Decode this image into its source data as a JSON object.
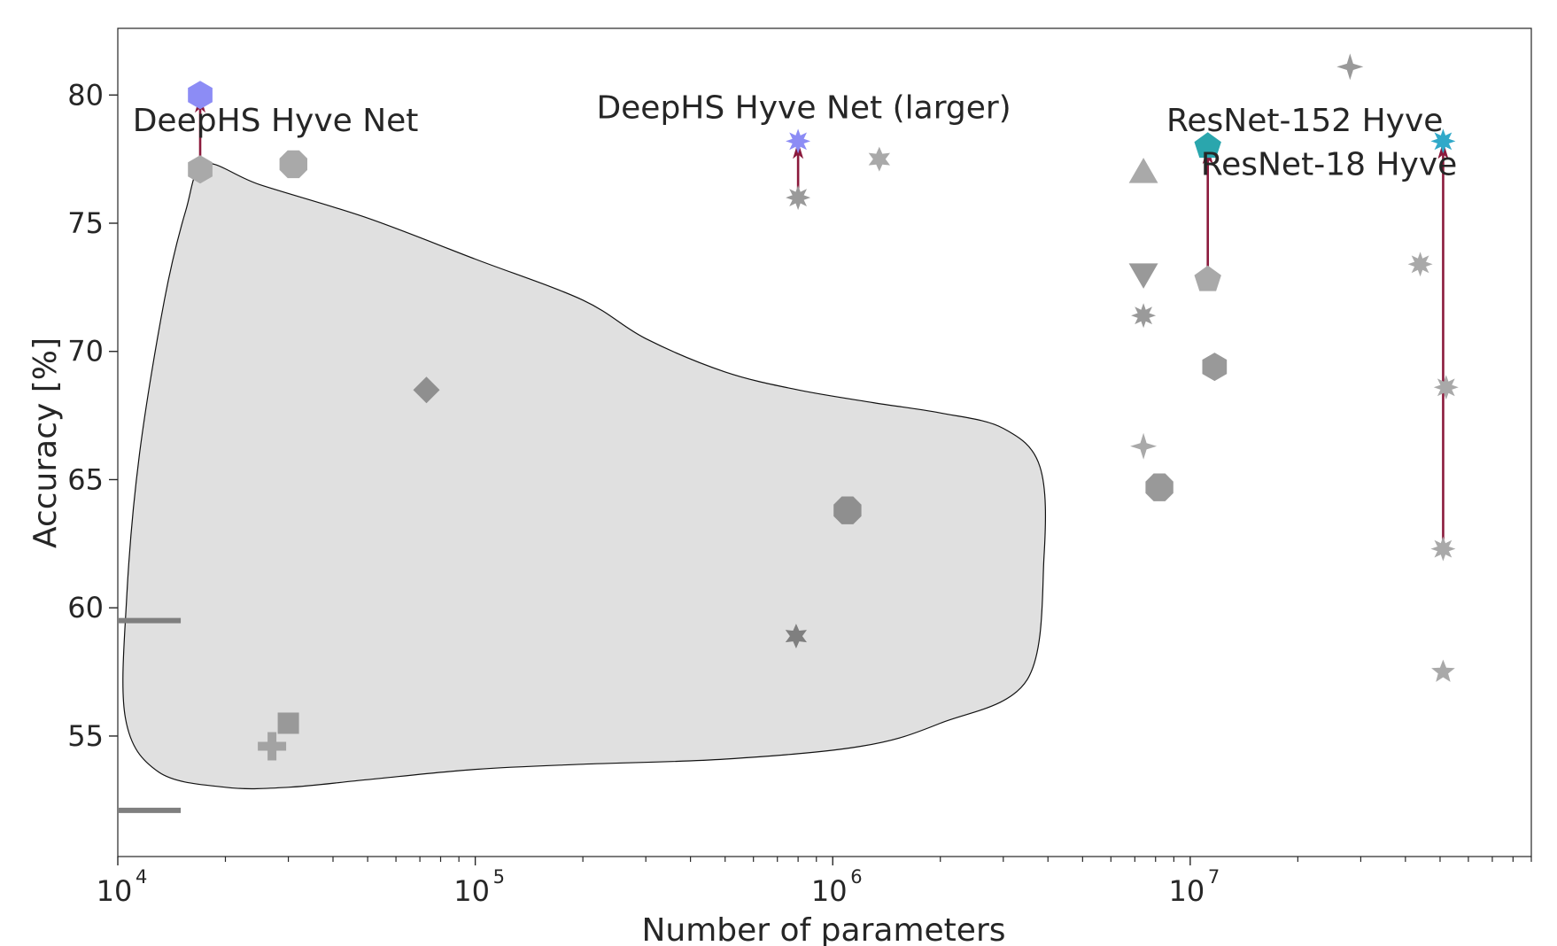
{
  "chart_data": {
    "type": "scatter",
    "title": "",
    "xlabel": "Number of parameters",
    "ylabel": "Accuracy [%]",
    "x_scale": "log",
    "xlim": [
      10000,
      90000000
    ],
    "ylim": [
      50.3,
      82.6
    ],
    "grid": false,
    "x_ticks": [
      {
        "value": 10000,
        "base": "10",
        "exp": "4"
      },
      {
        "value": 100000,
        "base": "10",
        "exp": "5"
      },
      {
        "value": 1000000,
        "base": "10",
        "exp": "6"
      },
      {
        "value": 10000000,
        "base": "10",
        "exp": "7"
      }
    ],
    "y_ticks": [
      55,
      60,
      65,
      70,
      75,
      80
    ],
    "colors": {
      "baseline": "#a9a9a9",
      "dark_gray": "#7f7f7f",
      "hyve_purple": "#8c8cf5",
      "hyve_teal": "#2aa6ad",
      "hyve_cyan": "#31a9c9",
      "arrow": "#8b1a3c",
      "region_fill": "#e0e0e0"
    },
    "points": [
      {
        "x": 17000,
        "y": 77.1,
        "marker": "hexagon",
        "color": "#a9a9a9"
      },
      {
        "x": 31000,
        "y": 77.3,
        "marker": "octagon",
        "color": "#a9a9a9"
      },
      {
        "x": 73000,
        "y": 68.5,
        "marker": "diamond",
        "color": "#8f8f8f"
      },
      {
        "x": 27000,
        "y": 54.6,
        "marker": "plus",
        "color": "#a3a3a3"
      },
      {
        "x": 30000,
        "y": 55.5,
        "marker": "square",
        "color": "#999999"
      },
      {
        "x": 800000,
        "y": 76.0,
        "marker": "star8",
        "color": "#9a9a9a"
      },
      {
        "x": 1350000,
        "y": 77.5,
        "marker": "star6",
        "color": "#a9a9a9"
      },
      {
        "x": 1100000,
        "y": 63.8,
        "marker": "octagon",
        "color": "#8f8f8f"
      },
      {
        "x": 790000,
        "y": 58.9,
        "marker": "star6",
        "color": "#7f7f7f"
      },
      {
        "x": 7400000,
        "y": 77.0,
        "marker": "triangle-up",
        "color": "#a9a9a9"
      },
      {
        "x": 7400000,
        "y": 73.0,
        "marker": "triangle-down",
        "color": "#999999"
      },
      {
        "x": 7400000,
        "y": 71.4,
        "marker": "star8",
        "color": "#9a9a9a"
      },
      {
        "x": 7400000,
        "y": 66.3,
        "marker": "star4",
        "color": "#a9a9a9"
      },
      {
        "x": 8200000,
        "y": 64.7,
        "marker": "octagon",
        "color": "#999999"
      },
      {
        "x": 11200000,
        "y": 72.8,
        "marker": "pentagon",
        "color": "#a9a9a9"
      },
      {
        "x": 11700000,
        "y": 69.4,
        "marker": "hexagon",
        "color": "#999999"
      },
      {
        "x": 28000000,
        "y": 81.1,
        "marker": "star4",
        "color": "#999999"
      },
      {
        "x": 44000000,
        "y": 73.4,
        "marker": "star8",
        "color": "#a9a9a9"
      },
      {
        "x": 52000000,
        "y": 68.6,
        "marker": "star8",
        "color": "#a9a9a9"
      },
      {
        "x": 51000000,
        "y": 62.3,
        "marker": "star8",
        "color": "#a9a9a9"
      },
      {
        "x": 51000000,
        "y": 57.5,
        "marker": "star5",
        "color": "#a9a9a9"
      },
      {
        "x": 17000,
        "y": 80.0,
        "marker": "hexagon",
        "color": "#8c8cf5"
      },
      {
        "x": 800000,
        "y": 78.2,
        "marker": "star8",
        "color": "#8c8cf5"
      },
      {
        "x": 11200000,
        "y": 78.0,
        "marker": "pentagon",
        "color": "#2aa6ad"
      },
      {
        "x": 51000000,
        "y": 78.2,
        "marker": "star8",
        "color": "#31a9c9"
      }
    ],
    "arrows": [
      {
        "x": 17000,
        "y_from": 77.1,
        "y_to": 80.0
      },
      {
        "x": 800000,
        "y_from": 76.0,
        "y_to": 78.2
      },
      {
        "x": 11200000,
        "y_from": 72.8,
        "y_to": 78.0
      },
      {
        "x": 51000000,
        "y_from": 62.3,
        "y_to": 78.2
      }
    ],
    "hlines": [
      {
        "y": 59.5,
        "x_from": 10000,
        "x_to": 15000,
        "color": "#7f7f7f"
      },
      {
        "y": 52.1,
        "x_from": 10000,
        "x_to": 15000,
        "color": "#7f7f7f"
      }
    ],
    "annotations": [
      {
        "text": "DeepHS Hyve Net",
        "x": 11000,
        "y": 79.0,
        "anchor": "start"
      },
      {
        "text": "DeepHS Hyve Net (larger)",
        "x": 830000,
        "y": 79.5,
        "anchor": "middle"
      },
      {
        "text": "ResNet-152 Hyve",
        "x": 51000000,
        "y": 79.0,
        "anchor": "end"
      },
      {
        "text": "ResNet-18 Hyve",
        "x": 10700000,
        "y": 77.3,
        "anchor": "start"
      }
    ],
    "region": {
      "description": "shaded blob",
      "points": [
        [
          17500,
          77.3
        ],
        [
          25000,
          76.5
        ],
        [
          50000,
          75.2
        ],
        [
          100000,
          73.6
        ],
        [
          200000,
          72.0
        ],
        [
          300000,
          70.5
        ],
        [
          500000,
          69.2
        ],
        [
          800000,
          68.5
        ],
        [
          1300000,
          68.0
        ],
        [
          2000000,
          67.6
        ],
        [
          3000000,
          67.0
        ],
        [
          3800000,
          65.5
        ],
        [
          3900000,
          62.0
        ],
        [
          3500000,
          57.2
        ],
        [
          2000000,
          55.5
        ],
        [
          1200000,
          54.6
        ],
        [
          500000,
          54.1
        ],
        [
          200000,
          53.9
        ],
        [
          100000,
          53.7
        ],
        [
          50000,
          53.3
        ],
        [
          30000,
          53.0
        ],
        [
          20000,
          53.0
        ],
        [
          13000,
          53.6
        ],
        [
          10500,
          55.7
        ],
        [
          10600,
          60.5
        ],
        [
          11500,
          66.0
        ],
        [
          13500,
          72.0
        ],
        [
          15500,
          75.5
        ]
      ]
    }
  }
}
